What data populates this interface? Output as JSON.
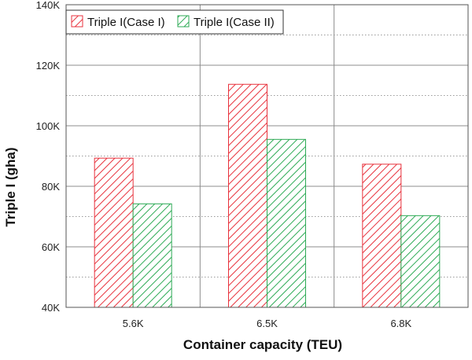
{
  "chart_data": {
    "type": "bar",
    "categories": [
      "5.6K",
      "6.5K",
      "6.8K"
    ],
    "series": [
      {
        "name": "Triple I(Case I)",
        "values": [
          89300,
          113700,
          87300
        ],
        "color": "#e8323c",
        "pattern": "hatch-right"
      },
      {
        "name": "Triple I(Case II)",
        "values": [
          74200,
          95500,
          70300
        ],
        "color": "#2daa55",
        "pattern": "hatch-right"
      }
    ],
    "xlabel": "Container capacity (TEU)",
    "ylabel": "Triple I (gha)",
    "ylim": [
      40000,
      140000
    ],
    "yticks": [
      40000,
      60000,
      80000,
      100000,
      120000,
      140000
    ],
    "ytick_labels": [
      "40K",
      "60K",
      "80K",
      "100K",
      "120K",
      "140K"
    ],
    "grid": "major solid, minor dotted",
    "legend_position": "top-left"
  }
}
